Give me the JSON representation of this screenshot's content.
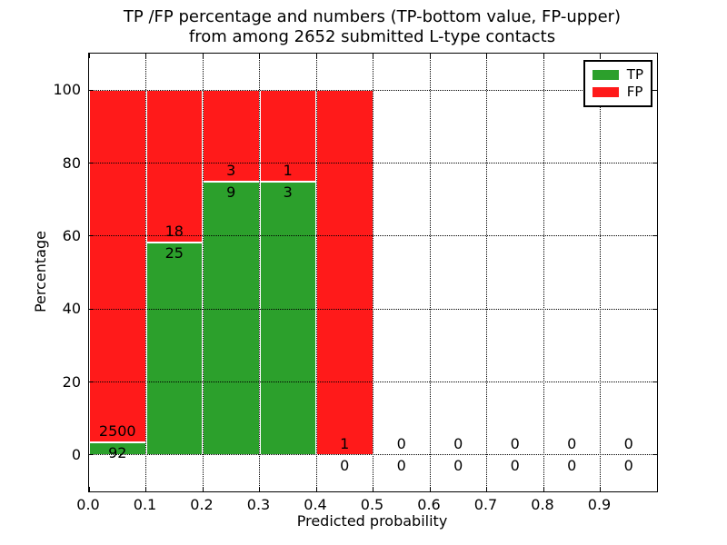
{
  "title": {
    "line1": "TP /FP percentage and numbers (TP-bottom value, FP-upper)",
    "line2": "from among 2652 submitted L-type contacts"
  },
  "axes": {
    "xlabel": "Predicted probability",
    "ylabel": "Percentage",
    "x_tick_labels": [
      "0.0",
      "0.1",
      "0.2",
      "0.3",
      "0.4",
      "0.5",
      "0.6",
      "0.7",
      "0.8",
      "0.9"
    ],
    "y_tick_labels": [
      "0",
      "20",
      "40",
      "60",
      "80",
      "100"
    ]
  },
  "legend": {
    "items": [
      {
        "label": "TP",
        "color": "#2ca02c"
      },
      {
        "label": "FP",
        "color": "#ff1a1a"
      }
    ]
  },
  "chart_data": {
    "type": "bar",
    "stacked": true,
    "title": "TP /FP percentage and numbers (TP-bottom value, FP-upper) from among 2652 submitted L-type contacts",
    "xlabel": "Predicted probability",
    "ylabel": "Percentage",
    "xlim": [
      0.0,
      1.0
    ],
    "ylim": [
      -10,
      110
    ],
    "grid": true,
    "grid_style": "dotted",
    "legend_position": "upper right",
    "bin_width": 0.1,
    "bin_starts": [
      0.0,
      0.1,
      0.2,
      0.3,
      0.4,
      0.5,
      0.6,
      0.7,
      0.8,
      0.9
    ],
    "bars_drawn_for_bins": [
      0,
      1,
      2,
      3,
      4
    ],
    "total_contacts": 2652,
    "series": [
      {
        "name": "TP",
        "color": "#2ca02c",
        "counts": [
          92,
          25,
          9,
          3,
          0,
          0,
          0,
          0,
          0,
          0
        ],
        "pct": [
          3.55,
          58.14,
          75,
          75,
          0,
          0,
          0,
          0,
          0,
          0
        ]
      },
      {
        "name": "FP",
        "color": "#ff1a1a",
        "counts": [
          2500,
          18,
          3,
          1,
          1,
          0,
          0,
          0,
          0,
          0
        ],
        "pct": [
          96.45,
          41.86,
          25,
          25,
          100,
          0,
          0,
          0,
          0,
          0
        ]
      }
    ],
    "colors": {
      "tp": "#2ca02c",
      "fp": "#ff1a1a",
      "grid": "#000000",
      "bar_edge": "#ffffff",
      "text": "#000000"
    }
  }
}
